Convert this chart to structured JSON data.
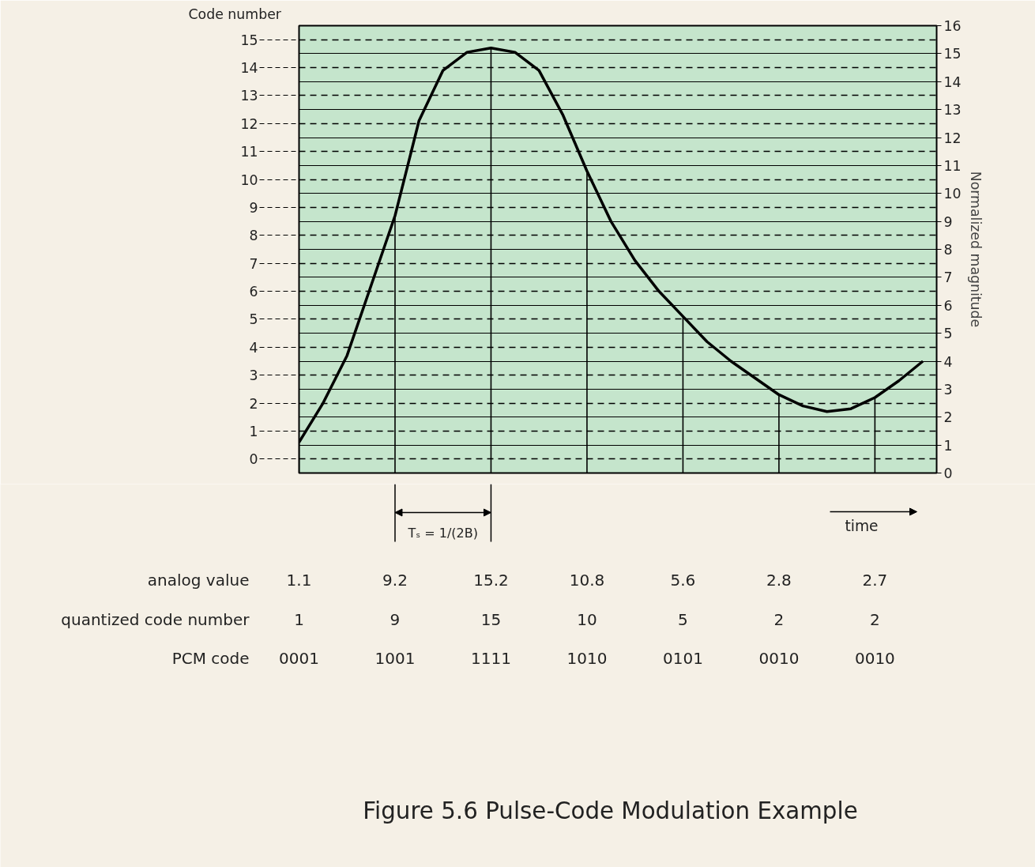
{
  "chart_data": {
    "type": "line",
    "title": "Figure 5.6 Pulse-Code Modulation Example",
    "ylabel": "Normalized magnitude",
    "y2label": "Code number",
    "categories": [
      null,
      null,
      null,
      null,
      null,
      null,
      null,
      null,
      null,
      null,
      null,
      null,
      null,
      null,
      null,
      null,
      null,
      null,
      null,
      null,
      null,
      null,
      null,
      null,
      null,
      null,
      null
    ],
    "ylim": [
      0,
      16
    ],
    "yticks": [
      0,
      1,
      2,
      3,
      4,
      5,
      6,
      7,
      8,
      9,
      10,
      11,
      12,
      13,
      14,
      15,
      16
    ],
    "y2lim": [
      -0.5,
      15.5
    ],
    "y2ticks": [
      0,
      1,
      2,
      3,
      4,
      5,
      6,
      7,
      8,
      9,
      10,
      11,
      12,
      13,
      14,
      15
    ],
    "grid": true,
    "series": [
      {
        "color": "#000000",
        "values": [
          1.1,
          2.5,
          4.2,
          6.7,
          9.2,
          12.6,
          14.4,
          15.05,
          15.2,
          15.05,
          14.4,
          12.8,
          10.8,
          9.0,
          7.6,
          6.5,
          5.6,
          4.7,
          4.0,
          3.4,
          2.8,
          2.4,
          2.2,
          2.3,
          2.7,
          3.3,
          4.0
        ]
      },
      {
        "type": "bar",
        "name": "analog value",
        "color": "#000000",
        "values": [
          1.1,
          null,
          null,
          null,
          9.2,
          null,
          null,
          null,
          15.2,
          null,
          null,
          null,
          10.8,
          null,
          null,
          null,
          5.6,
          null,
          null,
          null,
          2.8,
          null,
          null,
          null,
          2.7,
          null,
          null
        ],
        "value_labels": [
          "1.1",
          null,
          null,
          null,
          "9.2",
          null,
          null,
          null,
          "15.2",
          null,
          null,
          null,
          "10.8",
          null,
          null,
          null,
          "5.6",
          null,
          null,
          null,
          "2.8",
          null,
          null,
          null,
          "2.7",
          null,
          null
        ]
      }
    ],
    "annotations": [
      "Tₛ = 1/(2B)",
      "time",
      "quantized code number",
      "1",
      "9",
      "15",
      "10",
      "5",
      "2",
      "2",
      "PCM code",
      "0001",
      "1001",
      "1111",
      "1010",
      "0101",
      "0010",
      "0010"
    ]
  }
}
